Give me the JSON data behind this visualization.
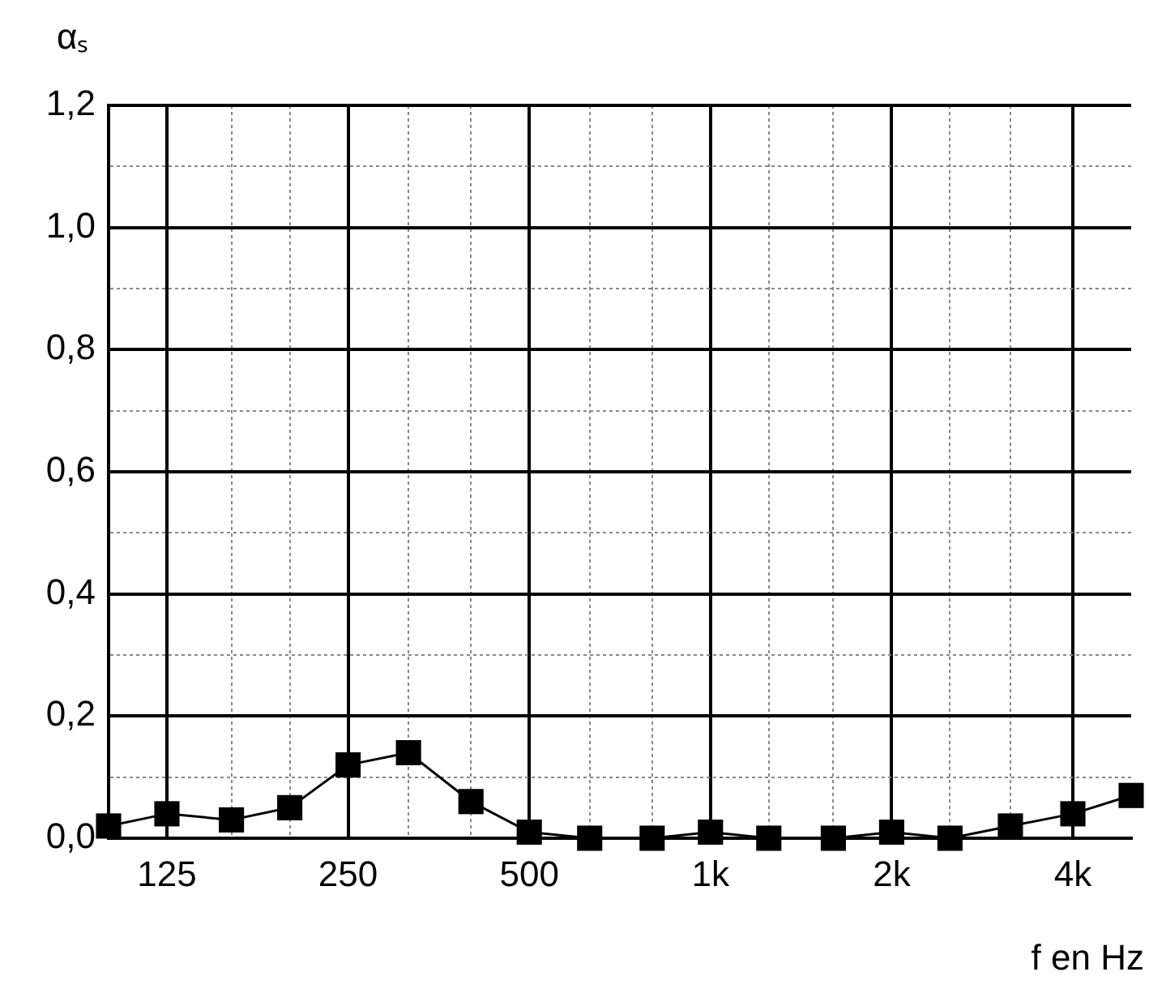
{
  "chart_data": {
    "type": "line",
    "xlabel": "f en Hz",
    "ylabel": "αₛ",
    "x": [
      100,
      125,
      160,
      200,
      250,
      315,
      400,
      500,
      630,
      800,
      1000,
      1250,
      1600,
      2000,
      2500,
      3150,
      4000,
      5000
    ],
    "series": [
      {
        "color": "#000000",
        "values": [
          0.02,
          0.04,
          0.03,
          0.05,
          0.12,
          0.14,
          0.06,
          0.01,
          0,
          0,
          0.01,
          0,
          0,
          0.01,
          0,
          0.02,
          0.04,
          0.07
        ]
      }
    ],
    "log": "x",
    "marker": "square",
    "line_style": "solid",
    "grid": true,
    "legend": false,
    "xlim": [
      100,
      5000
    ],
    "xticks": [
      {
        "value": 125,
        "label": "125"
      },
      {
        "value": 160,
        "label": null
      },
      {
        "value": 200,
        "label": null
      },
      {
        "value": 250,
        "label": "250"
      },
      {
        "value": 315,
        "label": null
      },
      {
        "value": 400,
        "label": null
      },
      {
        "value": 500,
        "label": "500"
      },
      {
        "value": 630,
        "label": null
      },
      {
        "value": 800,
        "label": null
      },
      {
        "value": 1000,
        "label": "1k"
      },
      {
        "value": 1250,
        "label": null
      },
      {
        "value": 1600,
        "label": null
      },
      {
        "value": 2000,
        "label": "2k"
      },
      {
        "value": 2500,
        "label": null
      },
      {
        "value": 3150,
        "label": null
      },
      {
        "value": 4000,
        "label": "4k"
      }
    ],
    "ylim": [
      0,
      1.2
    ],
    "yticks": [
      {
        "value": 0,
        "label": "0,0"
      },
      {
        "value": 0.1,
        "label": null
      },
      {
        "value": 0.2,
        "label": "0,2"
      },
      {
        "value": 0.3,
        "label": null
      },
      {
        "value": 0.4,
        "label": "0,4"
      },
      {
        "value": 0.5,
        "label": null
      },
      {
        "value": 0.6,
        "label": "0,6"
      },
      {
        "value": 0.7,
        "label": null
      },
      {
        "value": 0.8,
        "label": "0,8"
      },
      {
        "value": 0.9,
        "label": null
      },
      {
        "value": 1.0,
        "label": "1,0"
      },
      {
        "value": 1.1,
        "label": null
      },
      {
        "value": 1.2,
        "label": "1,2"
      }
    ]
  }
}
